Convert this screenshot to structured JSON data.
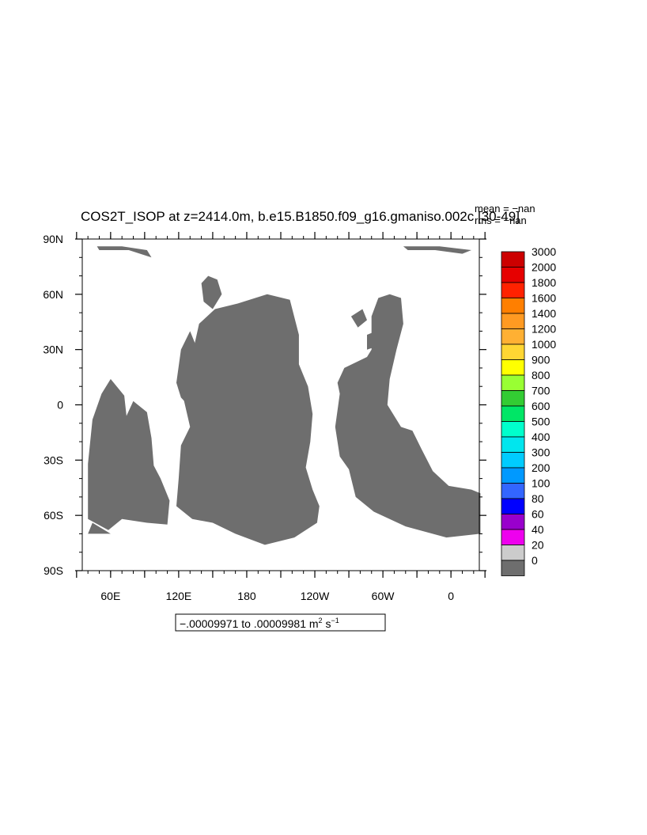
{
  "chart_data": {
    "type": "heatmap",
    "title": "COS2T_ISOP at z=2414.0m, b.e15.B1850.f09_g16.gmaniso.002c [30-49]",
    "stats": {
      "mean": "mean = −nan",
      "rms": "rms = −nan"
    },
    "x_axis": {
      "ticks": [
        30,
        60,
        90,
        120,
        150,
        180,
        210,
        240,
        270,
        300,
        330,
        360,
        390
      ],
      "labels": [
        {
          "value": 60,
          "text": "60E"
        },
        {
          "value": 120,
          "text": "120E"
        },
        {
          "value": 180,
          "text": "180"
        },
        {
          "value": 240,
          "text": "120W"
        },
        {
          "value": 300,
          "text": "60W"
        },
        {
          "value": 360,
          "text": "0"
        }
      ],
      "range": [
        35,
        385
      ]
    },
    "y_axis": {
      "labels": [
        {
          "value": 90,
          "text": "90N"
        },
        {
          "value": 60,
          "text": "60N"
        },
        {
          "value": 30,
          "text": "30N"
        },
        {
          "value": 0,
          "text": "0"
        },
        {
          "value": -30,
          "text": "30S"
        },
        {
          "value": -60,
          "text": "60S"
        },
        {
          "value": -90,
          "text": "90S"
        }
      ],
      "range": [
        -90,
        90
      ]
    },
    "range_note": {
      "text": "−.00009971 to .00009981 m",
      "sup1": "2",
      "s": " s",
      "sup2": "−1"
    },
    "colorbar": {
      "levels": [
        "3000",
        "2000",
        "1800",
        "1600",
        "1400",
        "1200",
        "1000",
        "900",
        "800",
        "700",
        "600",
        "500",
        "400",
        "300",
        "200",
        "100",
        "80",
        "60",
        "40",
        "20",
        "0"
      ],
      "colors": [
        "#cc0000",
        "#e60000",
        "#ff2200",
        "#ff7f00",
        "#ff9a22",
        "#ffb033",
        "#ffd633",
        "#ffff00",
        "#99ff33",
        "#33cc33",
        "#00e666",
        "#00ffcc",
        "#00e6ee",
        "#00ccff",
        "#0099ff",
        "#3366ff",
        "#0000ff",
        "#9900cc",
        "#ee00ee",
        "#cccccc",
        "#6e6e6e"
      ]
    },
    "regions": {
      "fill": "#6e6e6e",
      "polygons": [
        [
          [
            40,
            -62
          ],
          [
            58,
            -68
          ],
          [
            70,
            -62
          ],
          [
            92,
            -64
          ],
          [
            110,
            -65
          ],
          [
            112,
            -52
          ],
          [
            104,
            -40
          ],
          [
            98,
            -33
          ],
          [
            96,
            -18
          ],
          [
            92,
            -4
          ],
          [
            80,
            2
          ],
          [
            74,
            -6
          ],
          [
            72,
            5
          ],
          [
            60,
            14
          ],
          [
            52,
            6
          ],
          [
            44,
            -8
          ],
          [
            40,
            -32
          ]
        ],
        [
          [
            118,
            -55
          ],
          [
            120,
            -40
          ],
          [
            122,
            -22
          ],
          [
            130,
            -12
          ],
          [
            124,
            4
          ],
          [
            130,
            22
          ],
          [
            138,
            44
          ],
          [
            152,
            52
          ],
          [
            172,
            55
          ],
          [
            198,
            60
          ],
          [
            218,
            57
          ],
          [
            226,
            38
          ],
          [
            226,
            22
          ],
          [
            234,
            10
          ],
          [
            238,
            -5
          ],
          [
            236,
            -20
          ],
          [
            232,
            -34
          ],
          [
            238,
            -46
          ],
          [
            244,
            -55
          ],
          [
            242,
            -64
          ],
          [
            222,
            -72
          ],
          [
            196,
            -76
          ],
          [
            170,
            -70
          ],
          [
            150,
            -64
          ],
          [
            132,
            -62
          ]
        ],
        [
          [
            270,
            -35
          ],
          [
            262,
            -28
          ],
          [
            258,
            -12
          ],
          [
            262,
            6
          ],
          [
            260,
            12
          ],
          [
            266,
            20
          ],
          [
            286,
            26
          ],
          [
            290,
            30
          ],
          [
            290,
            48
          ],
          [
            296,
            58
          ],
          [
            306,
            60
          ],
          [
            316,
            58
          ],
          [
            318,
            44
          ],
          [
            312,
            30
          ],
          [
            306,
            14
          ],
          [
            304,
            0
          ],
          [
            316,
            -12
          ],
          [
            326,
            -14
          ],
          [
            334,
            -24
          ],
          [
            344,
            -36
          ],
          [
            358,
            -44
          ],
          [
            378,
            -46
          ],
          [
            386,
            -48
          ],
          [
            386,
            -70
          ],
          [
            356,
            -72
          ],
          [
            320,
            -66
          ],
          [
            292,
            -58
          ],
          [
            276,
            -50
          ]
        ],
        [
          [
            128,
            0
          ],
          [
            136,
            12
          ],
          [
            140,
            24
          ],
          [
            134,
            34
          ],
          [
            130,
            40
          ],
          [
            122,
            30
          ],
          [
            118,
            12
          ],
          [
            122,
            4
          ]
        ],
        [
          [
            162,
            -22
          ],
          [
            170,
            -24
          ],
          [
            168,
            -34
          ],
          [
            160,
            -32
          ]
        ],
        [
          [
            286,
            30
          ],
          [
            296,
            32
          ],
          [
            294,
            40
          ],
          [
            286,
            38
          ]
        ],
        [
          [
            140,
            66
          ],
          [
            146,
            70
          ],
          [
            154,
            68
          ],
          [
            158,
            60
          ],
          [
            150,
            52
          ],
          [
            142,
            56
          ]
        ],
        [
          [
            272,
            48
          ],
          [
            282,
            52
          ],
          [
            286,
            46
          ],
          [
            278,
            42
          ]
        ],
        [
          [
            86,
            -48
          ],
          [
            94,
            -52
          ],
          [
            92,
            -60
          ],
          [
            84,
            -56
          ]
        ],
        [
          [
            44,
            -64
          ],
          [
            60,
            -70
          ],
          [
            40,
            -70
          ]
        ],
        [
          [
            48,
            86
          ],
          [
            70,
            86
          ],
          [
            92,
            84
          ],
          [
            96,
            80
          ],
          [
            76,
            84
          ],
          [
            50,
            84
          ]
        ],
        [
          [
            318,
            86
          ],
          [
            350,
            86
          ],
          [
            378,
            84
          ],
          [
            370,
            82
          ],
          [
            346,
            84
          ],
          [
            322,
            84
          ]
        ]
      ]
    }
  }
}
